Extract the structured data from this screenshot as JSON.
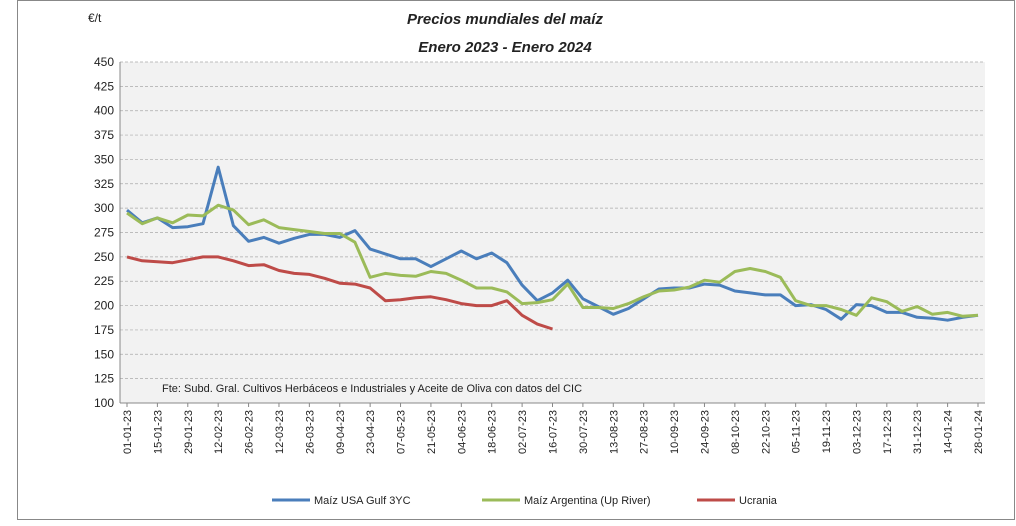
{
  "chart_data": {
    "type": "line",
    "title": "Precios mundiales del maíz",
    "subtitle": "Enero 2023 - Enero 2024",
    "y_label": "€/t",
    "note": "Fte: Subd. Gral. Cultivos Herbáceos e Industriales y Aceite de Oliva con datos del CIC",
    "categories": [
      "01-01-23",
      null,
      "15-01-23",
      null,
      "29-01-23",
      null,
      "12-02-23",
      null,
      "26-02-23",
      null,
      "12-03-23",
      null,
      "26-03-23",
      null,
      "09-04-23",
      null,
      "23-04-23",
      null,
      "07-05-23",
      null,
      "21-05-23",
      null,
      "04-06-23",
      null,
      "18-06-23",
      null,
      "02-07-23",
      null,
      "16-07-23",
      null,
      "30-07-23",
      null,
      "13-08-23",
      null,
      "27-08-23",
      null,
      "10-09-23",
      null,
      "24-09-23",
      null,
      "08-10-23",
      null,
      "22-10-23",
      null,
      "05-11-23",
      null,
      "19-11-23",
      null,
      "03-12-23",
      null,
      "17-12-23",
      null,
      "31-12-23",
      null,
      "14-01-24",
      null,
      "28-01-24"
    ],
    "series": [
      {
        "name": "Maíz USA Gulf 3YC",
        "color": "#4a7ebb",
        "values": [
          298,
          285,
          290,
          280,
          281,
          284,
          342,
          282,
          266,
          270,
          264,
          269,
          273,
          273,
          270,
          277,
          258,
          253,
          248,
          248,
          240,
          248,
          256,
          248,
          254,
          244,
          221,
          205,
          213,
          226,
          207,
          199,
          191,
          197,
          207,
          217,
          218,
          218,
          222,
          221,
          215,
          213,
          211,
          211,
          200,
          201,
          196,
          186,
          201,
          200,
          193,
          193,
          188,
          187,
          185,
          188,
          190
        ]
      },
      {
        "name": "Maíz Argentina (Up River)",
        "color": "#9bbb59",
        "values": [
          295,
          284,
          290,
          285,
          293,
          292,
          303,
          298,
          283,
          288,
          280,
          278,
          276,
          274,
          274,
          265,
          229,
          233,
          231,
          230,
          235,
          233,
          226,
          218,
          218,
          214,
          202,
          203,
          206,
          222,
          198,
          198,
          197,
          202,
          209,
          215,
          216,
          219,
          226,
          224,
          235,
          238,
          235,
          229,
          205,
          200,
          200,
          196,
          190,
          208,
          204,
          194,
          199,
          191,
          193,
          189,
          190
        ]
      },
      {
        "name": "Ucrania",
        "color": "#be4b48",
        "values": [
          250,
          246,
          245,
          244,
          247,
          250,
          250,
          246,
          241,
          242,
          236,
          233,
          232,
          228,
          223,
          222,
          218,
          205,
          206,
          208,
          209,
          206,
          202,
          200,
          200,
          205,
          190,
          181,
          176,
          null,
          null,
          null,
          null,
          null,
          null,
          null,
          null,
          null,
          null,
          null,
          null,
          null,
          null,
          null,
          null,
          null,
          null,
          null,
          null,
          null,
          null,
          null,
          null,
          null,
          null,
          null,
          null
        ]
      }
    ],
    "ylim": [
      100,
      450
    ],
    "yticks": [
      100,
      125,
      150,
      175,
      200,
      225,
      250,
      275,
      300,
      325,
      350,
      375,
      400,
      425,
      450
    ],
    "grid": true,
    "legend": "bottom"
  }
}
